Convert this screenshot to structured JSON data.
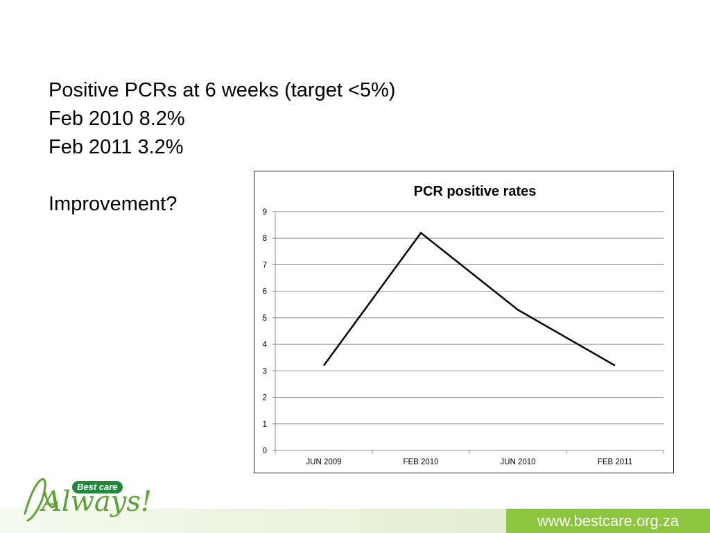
{
  "slide": {
    "lines": [
      "Positive PCRs at 6 weeks (target <5%)",
      "Feb 2010 8.2%",
      "Feb 2011 3.2%",
      "",
      "Improvement?"
    ]
  },
  "chart_data": {
    "type": "line",
    "title": "PCR positive rates",
    "categories": [
      "JUN 2009",
      "FEB 2010",
      "JUN 2010",
      "FEB 2011"
    ],
    "series": [
      {
        "values": [
          3.2,
          8.2,
          5.3,
          3.2
        ]
      }
    ],
    "ylim": [
      0,
      9
    ],
    "yticks": [
      0,
      1,
      2,
      3,
      4,
      5,
      6,
      7,
      8,
      9
    ],
    "xlabel": "",
    "ylabel": "",
    "grid": true,
    "line_color": "#000000"
  },
  "logo": {
    "badge": "Best care",
    "script": "Always!"
  },
  "footer": {
    "url": "www.bestcare.org.za"
  },
  "colors": {
    "footer_green": "#8cc63f",
    "logo_green": "#1f8a3a",
    "grid": "#8c8c8c"
  }
}
